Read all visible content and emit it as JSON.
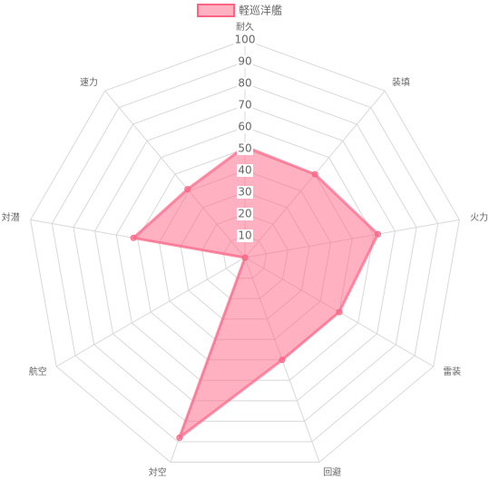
{
  "chart_data": {
    "type": "radar",
    "categories": [
      "耐久",
      "装填",
      "火力",
      "雷装",
      "回避",
      "対空",
      "航空",
      "対潜",
      "速力"
    ],
    "series": [
      {
        "name": "軽巡洋艦",
        "values": [
          51,
          50,
          62,
          50,
          50,
          88,
          0,
          52,
          41
        ],
        "color": "#ff6384"
      }
    ],
    "r_ticks": [
      10,
      20,
      30,
      40,
      50,
      60,
      70,
      80,
      90,
      100
    ],
    "r_range": [
      0,
      100
    ],
    "grid": true,
    "legend_position": "top"
  }
}
